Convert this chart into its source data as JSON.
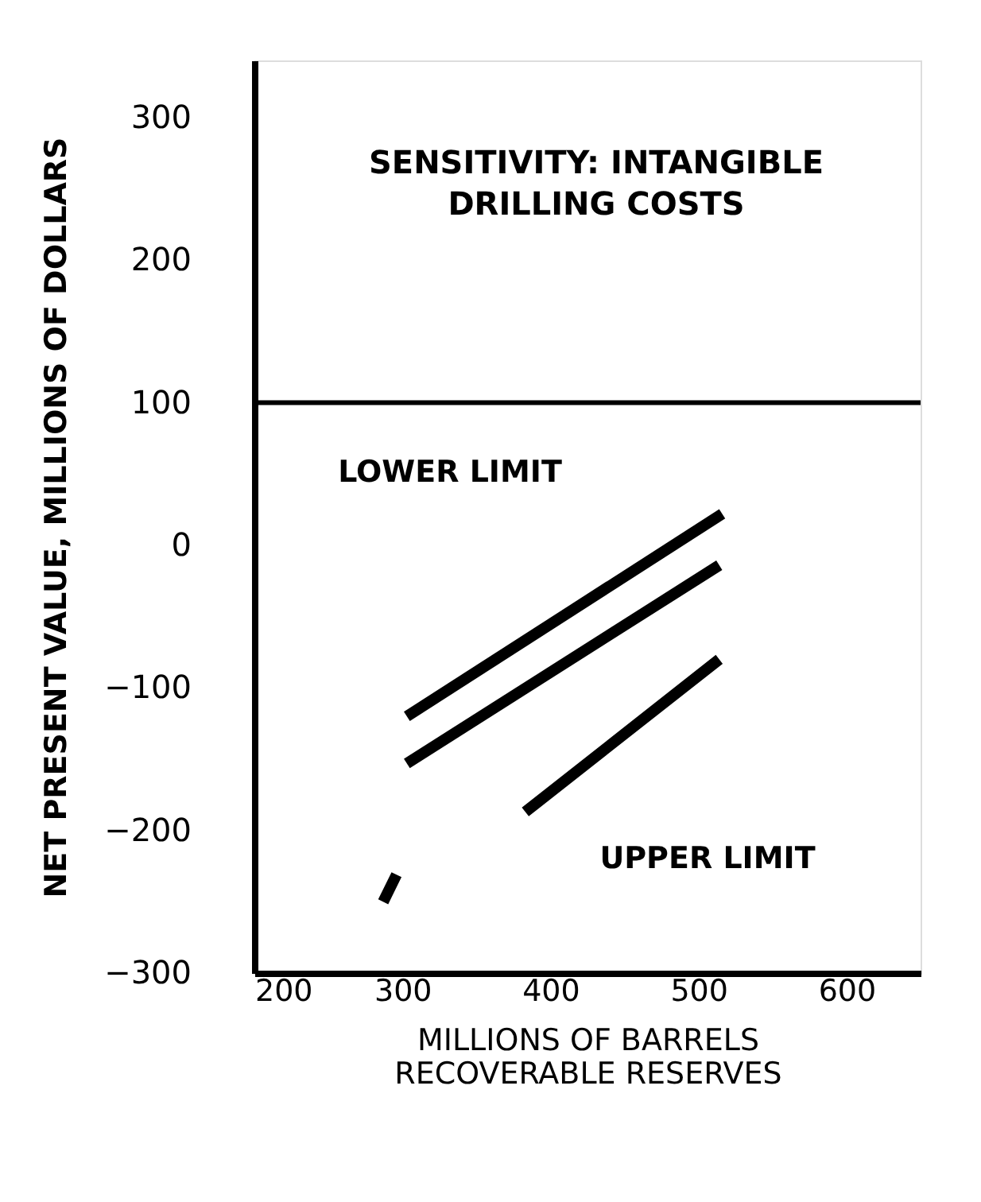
{
  "chart_data": {
    "type": "line",
    "title": "SENSITIVITY: INTANGIBLE\nDRILLING COSTS",
    "xlabel": "MILLIONS OF BARRELS\nRECOVERABLE RESERVES",
    "ylabel": "NET PRESENT VALUE, MILLIONS OF DOLLARS",
    "series": [
      {
        "color": "#000000",
        "x": [
          303,
          516
        ],
        "values": [
          -120,
          22
        ]
      },
      {
        "color": "#000000",
        "x": [
          303,
          514
        ],
        "values": [
          -153,
          -14
        ]
      },
      {
        "color": "#000000",
        "x": [
          287,
          296,
          340,
          383,
          514
        ],
        "values": [
          -250,
          -231,
          null,
          -187,
          -80
        ]
      }
    ],
    "annotations": [
      "LOWER LIMIT",
      "UPPER LIMIT"
    ],
    "ref_lines": [
      {
        "axis": "y",
        "value": 100,
        "label": null,
        "color": "#000000"
      }
    ],
    "xlim": [
      200,
      650
    ],
    "xticks": [
      200,
      300,
      400,
      500,
      600
    ],
    "ylim": [
      -300,
      340
    ],
    "yticks": [
      300,
      200,
      100,
      0,
      -100,
      -200,
      -300
    ],
    "grid": false,
    "marker": "none",
    "line_style": "solid"
  }
}
